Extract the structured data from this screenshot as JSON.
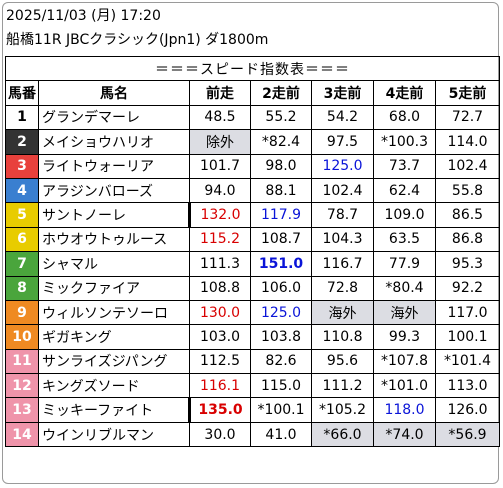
{
  "header": {
    "datetime": "2025/11/03 (月) 17:20",
    "race": "船橋11R JBCクラシック(Jpn1) ダ1800m"
  },
  "table": {
    "title": "＝＝＝スピード指数表＝＝＝",
    "columns": [
      "馬番",
      "馬名",
      "前走",
      "2走前",
      "3走前",
      "4走前",
      "5走前"
    ],
    "frame_colors": {
      "1": {
        "bg": "#ffffff",
        "fg": "#000000"
      },
      "2": {
        "bg": "#333333",
        "fg": "#ffffff"
      },
      "3": {
        "bg": "#e8413c",
        "fg": "#ffffff"
      },
      "4": {
        "bg": "#3a7fd0",
        "fg": "#ffffff"
      },
      "5": {
        "bg": "#e8cc00",
        "fg": "#ffffff"
      },
      "6": {
        "bg": "#4aa53c",
        "fg": "#ffffff"
      },
      "7": {
        "bg": "#ef8a22",
        "fg": "#ffffff"
      },
      "8": {
        "bg": "#ef94aa",
        "fg": "#ffffff"
      }
    },
    "rows": [
      {
        "no": "1",
        "frame": "1",
        "name": "グランデマーレ",
        "s": [
          {
            "v": "48.5"
          },
          {
            "v": "55.2"
          },
          {
            "v": "54.2"
          },
          {
            "v": "68.0"
          },
          {
            "v": "72.7"
          }
        ]
      },
      {
        "no": "2",
        "frame": "2",
        "name": "メイショウハリオ",
        "s": [
          {
            "v": "除外",
            "gray": true
          },
          {
            "v": "*82.4"
          },
          {
            "v": "97.5"
          },
          {
            "v": "*100.3"
          },
          {
            "v": "114.0"
          }
        ]
      },
      {
        "no": "3",
        "frame": "3",
        "name": "ライトウォーリア",
        "s": [
          {
            "v": "101.7"
          },
          {
            "v": "98.0"
          },
          {
            "v": "125.0",
            "color": "blue"
          },
          {
            "v": "73.7"
          },
          {
            "v": "102.4"
          }
        ]
      },
      {
        "no": "4",
        "frame": "4",
        "name": "アラジンバローズ",
        "s": [
          {
            "v": "94.0"
          },
          {
            "v": "88.1"
          },
          {
            "v": "102.4"
          },
          {
            "v": "62.4"
          },
          {
            "v": "55.8"
          }
        ]
      },
      {
        "no": "5",
        "frame": "5",
        "name": "サントノーレ",
        "s": [
          {
            "v": "132.0",
            "color": "red",
            "thick": true
          },
          {
            "v": "117.9",
            "color": "blue"
          },
          {
            "v": "78.7"
          },
          {
            "v": "109.0"
          },
          {
            "v": "86.5"
          }
        ]
      },
      {
        "no": "6",
        "frame": "5",
        "name": "ホウオウトゥルース",
        "s": [
          {
            "v": "115.2",
            "color": "red"
          },
          {
            "v": "108.7"
          },
          {
            "v": "104.3"
          },
          {
            "v": "63.5"
          },
          {
            "v": "86.8"
          }
        ]
      },
      {
        "no": "7",
        "frame": "6",
        "name": "シャマル",
        "s": [
          {
            "v": "111.3"
          },
          {
            "v": "151.0",
            "color": "blue",
            "bold": true
          },
          {
            "v": "116.7"
          },
          {
            "v": "77.9"
          },
          {
            "v": "95.3"
          }
        ]
      },
      {
        "no": "8",
        "frame": "6",
        "name": "ミックファイア",
        "s": [
          {
            "v": "108.8"
          },
          {
            "v": "106.0"
          },
          {
            "v": "72.8"
          },
          {
            "v": "*80.4"
          },
          {
            "v": "92.2"
          }
        ]
      },
      {
        "no": "9",
        "frame": "7",
        "name": "ウィルソンテソーロ",
        "s": [
          {
            "v": "130.0",
            "color": "red"
          },
          {
            "v": "125.0",
            "color": "blue"
          },
          {
            "v": "海外",
            "gray": true
          },
          {
            "v": "海外",
            "gray": true
          },
          {
            "v": "117.0"
          }
        ]
      },
      {
        "no": "10",
        "frame": "7",
        "name": "ギガキング",
        "s": [
          {
            "v": "103.0"
          },
          {
            "v": "103.8"
          },
          {
            "v": "110.8"
          },
          {
            "v": "99.3"
          },
          {
            "v": "100.1"
          }
        ]
      },
      {
        "no": "11",
        "frame": "8",
        "name": "サンライズジパング",
        "s": [
          {
            "v": "112.5"
          },
          {
            "v": "82.6"
          },
          {
            "v": "95.6"
          },
          {
            "v": "*107.8"
          },
          {
            "v": "*101.4"
          }
        ]
      },
      {
        "no": "12",
        "frame": "8",
        "name": "キングズソード",
        "s": [
          {
            "v": "116.1",
            "color": "red"
          },
          {
            "v": "115.0"
          },
          {
            "v": "111.2"
          },
          {
            "v": "*101.0"
          },
          {
            "v": "113.0"
          }
        ]
      },
      {
        "no": "13",
        "frame": "8",
        "name": "ミッキーファイト",
        "s": [
          {
            "v": "135.0",
            "color": "red",
            "bold": true,
            "thick": true
          },
          {
            "v": "*100.1"
          },
          {
            "v": "*105.2"
          },
          {
            "v": "118.0",
            "color": "blue"
          },
          {
            "v": "126.0"
          }
        ]
      },
      {
        "no": "14",
        "frame": "8",
        "name": "ウインリブルマン",
        "s": [
          {
            "v": "30.0"
          },
          {
            "v": "41.0"
          },
          {
            "v": "*66.0",
            "gray": true
          },
          {
            "v": "*74.0",
            "gray": true
          },
          {
            "v": "*56.9",
            "gray": true
          }
        ]
      }
    ]
  }
}
